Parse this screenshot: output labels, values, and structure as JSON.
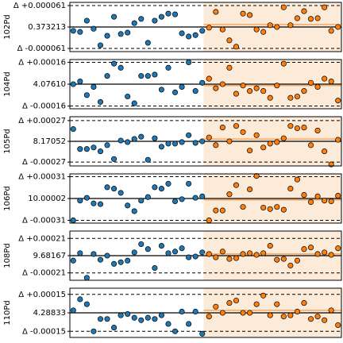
{
  "chart_data": [
    {
      "type": "scatter",
      "ylabel": "102Pd",
      "ylim": [
        0.373143,
        0.373283
      ],
      "yticks": [
        {
          "value": 0.373152,
          "label": "Δ -0.000061"
        },
        0.373213,
        {
          "value": 0.373274,
          "label": "Δ +0.000061"
        }
      ],
      "shade_color": "#fdebd9",
      "series": [
        {
          "color": "#1f77b4",
          "values": [
            0.373202,
            0.373199,
            0.373231,
            0.373208,
            0.373161,
            0.373188,
            0.373242,
            0.373193,
            0.373197,
            0.373224,
            0.373236,
            0.373168,
            0.373231,
            0.373242,
            0.373251,
            0.373249,
            0.373195,
            0.373186,
            0.37319,
            0.373202
          ]
        },
        {
          "color": "#ff7f0e",
          "mean_color": "#f5a863",
          "mean": 0.37322,
          "values": [
            0.373211,
            0.373256,
            0.373206,
            0.373175,
            0.373157,
            0.373251,
            0.373247,
            0.373206,
            0.373199,
            0.373218,
            0.373213,
            0.373269,
            0.373218,
            0.373238,
            0.373258,
            0.373236,
            0.373238,
            0.373269,
            0.373202,
            0.373213
          ]
        }
      ]
    },
    {
      "type": "scatter",
      "ylabel": "104Pd",
      "ylim": [
        4.07592,
        4.07628
      ],
      "yticks": [
        {
          "value": 4.07594,
          "label": "Δ -0.00016"
        },
        {
          "value": 4.0761,
          "label": "4.07610"
        },
        {
          "value": 4.07626,
          "label": "Δ +0.00016"
        }
      ],
      "shade_color": "#fdebd9",
      "series": [
        {
          "color": "#1f77b4",
          "values": [
            4.0761,
            4.07612,
            4.07602,
            4.07608,
            4.07597,
            4.07616,
            4.07625,
            4.07622,
            4.07601,
            4.07596,
            4.07616,
            4.07616,
            4.07617,
            4.07606,
            4.07622,
            4.07604,
            4.07608,
            4.07626,
            4.07605,
            4.07611
          ]
        },
        {
          "color": "#ff7f0e",
          "mean_color": "#f5a863",
          "mean": 4.07609,
          "values": [
            4.07614,
            4.07607,
            4.0761,
            4.07622,
            4.07603,
            4.07609,
            4.07605,
            4.07607,
            4.07605,
            4.076,
            4.07609,
            4.07625,
            4.076,
            4.07601,
            4.07605,
            4.07611,
            4.07608,
            4.07614,
            4.07612,
            4.07598
          ]
        }
      ]
    },
    {
      "type": "scatter",
      "ylabel": "105Pd",
      "ylim": [
        8.1702,
        8.17084
      ],
      "yticks": [
        {
          "value": 8.17025,
          "label": "Δ -0.00027"
        },
        8.17052,
        {
          "value": 8.17079,
          "label": "Δ +0.00027"
        }
      ],
      "shade_color": "#fdebd9",
      "series": [
        {
          "color": "#1f77b4",
          "values": [
            8.17068,
            8.17042,
            8.17042,
            8.17044,
            8.17039,
            8.17047,
            8.17029,
            8.17053,
            8.17051,
            8.17055,
            8.17058,
            8.17028,
            8.17056,
            8.17045,
            8.17049,
            8.17049,
            8.17051,
            8.1706,
            8.1705,
            8.17052
          ]
        },
        {
          "color": "#ff7f0e",
          "mean_color": "#f5a863",
          "mean": 8.17055,
          "values": [
            8.17057,
            8.17047,
            8.1707,
            8.17052,
            8.17072,
            8.17064,
            8.1704,
            8.1706,
            8.17044,
            8.17049,
            8.17051,
            8.17056,
            8.17072,
            8.17069,
            8.1707,
            8.17047,
            8.17066,
            8.17039,
            8.17022,
            8.17054
          ]
        }
      ]
    },
    {
      "type": "scatter",
      "ylabel": "106Pd",
      "ylim": [
        9.99967,
        10.00037
      ],
      "yticks": [
        {
          "value": 9.99971,
          "label": "Δ -0.00031"
        },
        10.00002,
        {
          "value": 10.00033,
          "label": "Δ +0.00031"
        }
      ],
      "shade_color": "#fdebd9",
      "series": [
        {
          "color": "#1f77b4",
          "values": [
            9.99971,
            9.99999,
            10.00003,
            9.99995,
            9.99994,
            10.00018,
            10.00016,
            10.0001,
            9.99992,
            9.99984,
            9.99999,
            10.00004,
            10.00018,
            10.00016,
            10.00023,
            9.99998,
            10.00001,
            10.00023,
            10.00003,
            10.00005
          ]
        },
        {
          "color": "#ff7f0e",
          "mean_color": "#f5a863",
          "mean": 10.0,
          "values": [
            9.99971,
            9.99985,
            9.99985,
            10.00008,
            10.00021,
            9.9999,
            10.00015,
            10.00034,
            9.99989,
            9.99987,
            9.9999,
            9.99986,
            10.00016,
            10.00029,
            10.00007,
            9.99997,
            10.00005,
            9.99999,
            9.99998,
            10.00006
          ]
        }
      ]
    },
    {
      "type": "scatter",
      "ylabel": "108Pd",
      "ylim": [
        9.68137,
        9.68197
      ],
      "yticks": [
        {
          "value": 9.68146,
          "label": "Δ -0.00021"
        },
        9.68167,
        {
          "value": 9.68188,
          "label": "Δ +0.00021"
        }
      ],
      "shade_color": "#fdebd9",
      "series": [
        {
          "color": "#1f77b4",
          "values": [
            9.68161,
            9.6817,
            9.6814,
            9.68169,
            9.68162,
            9.68167,
            9.68157,
            9.68159,
            9.68161,
            9.68171,
            9.68181,
            9.68175,
            9.68152,
            9.68179,
            9.6817,
            9.68172,
            9.68176,
            9.68165,
            9.68166,
            9.68171
          ]
        },
        {
          "color": "#ff7f0e",
          "mean_color": "#f5a863",
          "mean": 9.68169,
          "values": [
            9.68169,
            9.68165,
            9.68172,
            9.68163,
            9.68164,
            9.68169,
            9.6817,
            9.68168,
            9.6817,
            9.68179,
            9.68162,
            9.68163,
            9.68155,
            9.68161,
            9.68175,
            9.68177,
            9.68169,
            9.68171,
            9.68168,
            9.68176
          ]
        }
      ]
    },
    {
      "type": "scatter",
      "ylabel": "110Pd",
      "ylim": [
        4.28813,
        4.28853
      ],
      "yticks": [
        {
          "value": 4.28818,
          "label": "Δ -0.00015"
        },
        4.28833,
        {
          "value": 4.28848,
          "label": "Δ +0.00015"
        }
      ],
      "shade_color": "#fdebd9",
      "series": [
        {
          "color": "#1f77b4",
          "values": [
            4.28835,
            4.28844,
            4.2884,
            4.28818,
            4.28828,
            4.28828,
            4.28821,
            4.28831,
            4.28832,
            4.28829,
            4.28827,
            4.28829,
            4.28828,
            4.28831,
            4.28824,
            4.28818,
            4.28834,
            4.28824,
            4.28834,
            4.28816
          ]
        },
        {
          "color": "#ff7f0e",
          "mean_color": "#f5a863",
          "mean": 4.28835,
          "values": [
            4.2883,
            4.28838,
            4.28833,
            4.28841,
            4.28843,
            4.28833,
            4.28833,
            4.2884,
            4.28847,
            4.28831,
            4.2884,
            4.2883,
            4.28831,
            4.28834,
            4.28841,
            4.28828,
            4.2883,
            4.28827,
            4.28835,
            4.28823
          ]
        }
      ]
    }
  ]
}
